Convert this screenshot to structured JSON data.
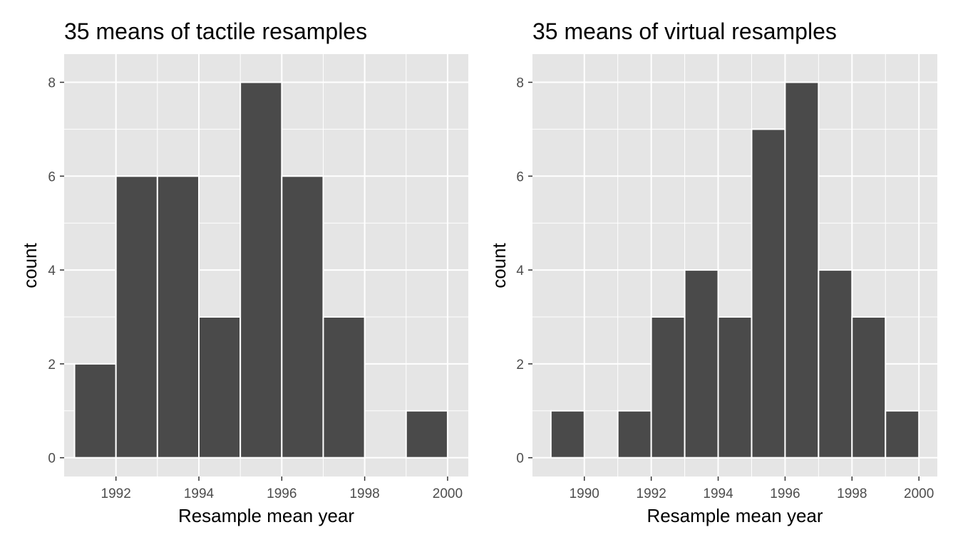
{
  "colors": {
    "panel_background": "#e5e5e5",
    "gridline": "#ffffff",
    "bar_fill": "#4a4a4a",
    "bar_stroke": "#ffffff",
    "tick_mark": "#333333",
    "tick_label": "#4d4d4d"
  },
  "chart_data": [
    {
      "type": "bar",
      "title": "35 means of tactile resamples",
      "xlabel": "Resample mean year",
      "ylabel": "count",
      "xlim": [
        1990.75,
        2000.5
      ],
      "ylim": [
        -0.4,
        8.6
      ],
      "x_ticks": [
        1992,
        1994,
        1996,
        1998,
        2000
      ],
      "x_tick_labels": [
        "1992",
        "1994",
        "1996",
        "1998",
        "2000"
      ],
      "y_ticks": [
        0,
        2,
        4,
        6,
        8
      ],
      "y_tick_labels": [
        "0",
        "2",
        "4",
        "6",
        "8"
      ],
      "grid": true,
      "bins": [
        {
          "x0": 1991,
          "x1": 1992,
          "count": 2
        },
        {
          "x0": 1992,
          "x1": 1993,
          "count": 6
        },
        {
          "x0": 1993,
          "x1": 1994,
          "count": 6
        },
        {
          "x0": 1994,
          "x1": 1995,
          "count": 3
        },
        {
          "x0": 1995,
          "x1": 1996,
          "count": 8
        },
        {
          "x0": 1996,
          "x1": 1997,
          "count": 6
        },
        {
          "x0": 1997,
          "x1": 1998,
          "count": 3
        },
        {
          "x0": 1998,
          "x1": 1999,
          "count": 0
        },
        {
          "x0": 1999,
          "x1": 2000,
          "count": 1
        }
      ]
    },
    {
      "type": "bar",
      "title": "35 means of virtual resamples",
      "xlabel": "Resample mean year",
      "ylabel": "count",
      "xlim": [
        1988.45,
        2000.55
      ],
      "ylim": [
        -0.4,
        8.6
      ],
      "x_ticks": [
        1990,
        1992,
        1994,
        1996,
        1998,
        2000
      ],
      "x_tick_labels": [
        "1990",
        "1992",
        "1994",
        "1996",
        "1998",
        "2000"
      ],
      "y_ticks": [
        0,
        2,
        4,
        6,
        8
      ],
      "y_tick_labels": [
        "0",
        "2",
        "4",
        "6",
        "8"
      ],
      "grid": true,
      "bins": [
        {
          "x0": 1989,
          "x1": 1990,
          "count": 1
        },
        {
          "x0": 1990,
          "x1": 1991,
          "count": 0
        },
        {
          "x0": 1991,
          "x1": 1992,
          "count": 1
        },
        {
          "x0": 1992,
          "x1": 1993,
          "count": 3
        },
        {
          "x0": 1993,
          "x1": 1994,
          "count": 4
        },
        {
          "x0": 1994,
          "x1": 1995,
          "count": 3
        },
        {
          "x0": 1995,
          "x1": 1996,
          "count": 7
        },
        {
          "x0": 1996,
          "x1": 1997,
          "count": 8
        },
        {
          "x0": 1997,
          "x1": 1998,
          "count": 4
        },
        {
          "x0": 1998,
          "x1": 1999,
          "count": 3
        },
        {
          "x0": 1999,
          "x1": 2000,
          "count": 1
        }
      ]
    }
  ]
}
